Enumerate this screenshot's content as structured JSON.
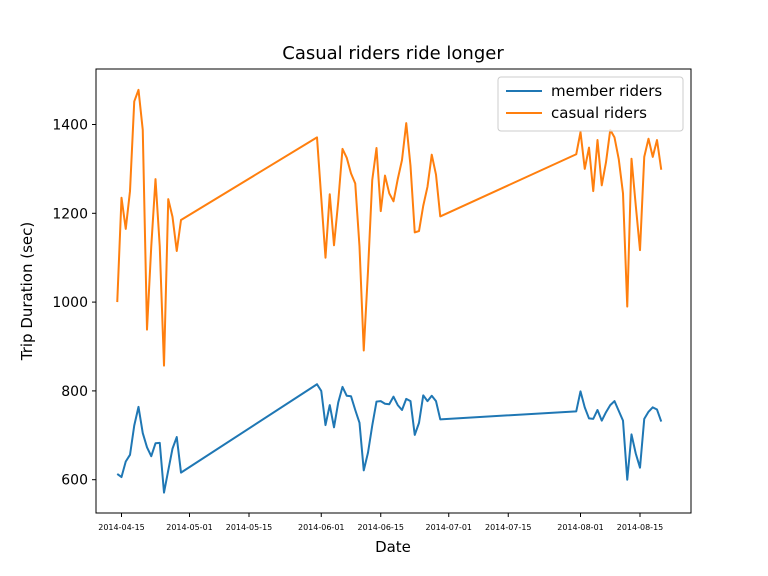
{
  "chart_data": {
    "type": "line",
    "title": "Casual riders ride longer",
    "xlabel": "Date",
    "ylabel": "Trip Duration (sec)",
    "xlim": [
      "2014-04-09",
      "2014-08-27"
    ],
    "ylim": [
      525,
      1525
    ],
    "x_ticks": [
      "2014-04-15",
      "2014-05-01",
      "2014-05-15",
      "2014-06-01",
      "2014-06-15",
      "2014-07-01",
      "2014-07-15",
      "2014-08-01",
      "2014-08-15"
    ],
    "y_ticks": [
      600,
      800,
      1000,
      1200,
      1400
    ],
    "grid": false,
    "legend_position": "top-right",
    "series": [
      {
        "name": "member riders",
        "color": "#1f77b4",
        "points": [
          [
            "2014-04-14",
            613
          ],
          [
            "2014-04-15",
            606
          ],
          [
            "2014-04-16",
            641
          ],
          [
            "2014-04-17",
            656
          ],
          [
            "2014-04-18",
            722
          ],
          [
            "2014-04-19",
            764
          ],
          [
            "2014-04-20",
            705
          ],
          [
            "2014-04-21",
            673
          ],
          [
            "2014-04-22",
            653
          ],
          [
            "2014-04-23",
            682
          ],
          [
            "2014-04-24",
            683
          ],
          [
            "2014-04-25",
            571
          ],
          [
            "2014-04-26",
            621
          ],
          [
            "2014-04-27",
            670
          ],
          [
            "2014-04-28",
            696
          ],
          [
            "2014-04-29",
            616
          ],
          [
            "2014-05-31",
            815
          ],
          [
            "2014-06-01",
            800
          ],
          [
            "2014-06-02",
            723
          ],
          [
            "2014-06-03",
            768
          ],
          [
            "2014-06-04",
            718
          ],
          [
            "2014-06-05",
            774
          ],
          [
            "2014-06-06",
            809
          ],
          [
            "2014-06-07",
            789
          ],
          [
            "2014-06-08",
            788
          ],
          [
            "2014-06-09",
            757
          ],
          [
            "2014-06-10",
            728
          ],
          [
            "2014-06-11",
            621
          ],
          [
            "2014-06-12",
            661
          ],
          [
            "2014-06-13",
            722
          ],
          [
            "2014-06-14",
            776
          ],
          [
            "2014-06-15",
            777
          ],
          [
            "2014-06-16",
            771
          ],
          [
            "2014-06-17",
            770
          ],
          [
            "2014-06-18",
            787
          ],
          [
            "2014-06-19",
            768
          ],
          [
            "2014-06-20",
            757
          ],
          [
            "2014-06-21",
            782
          ],
          [
            "2014-06-22",
            777
          ],
          [
            "2014-06-23",
            701
          ],
          [
            "2014-06-24",
            728
          ],
          [
            "2014-06-25",
            790
          ],
          [
            "2014-06-26",
            777
          ],
          [
            "2014-06-27",
            789
          ],
          [
            "2014-06-28",
            777
          ],
          [
            "2014-06-29",
            736
          ],
          [
            "2014-07-31",
            754
          ],
          [
            "2014-08-01",
            799
          ],
          [
            "2014-08-02",
            763
          ],
          [
            "2014-08-03",
            738
          ],
          [
            "2014-08-04",
            737
          ],
          [
            "2014-08-05",
            757
          ],
          [
            "2014-08-06",
            733
          ],
          [
            "2014-08-07",
            752
          ],
          [
            "2014-08-08",
            768
          ],
          [
            "2014-08-09",
            777
          ],
          [
            "2014-08-10",
            755
          ],
          [
            "2014-08-11",
            733
          ],
          [
            "2014-08-12",
            600
          ],
          [
            "2014-08-13",
            702
          ],
          [
            "2014-08-14",
            659
          ],
          [
            "2014-08-15",
            627
          ],
          [
            "2014-08-16",
            737
          ],
          [
            "2014-08-17",
            753
          ],
          [
            "2014-08-18",
            763
          ],
          [
            "2014-08-19",
            758
          ],
          [
            "2014-08-20",
            731
          ]
        ]
      },
      {
        "name": "casual riders",
        "color": "#ff7f0e",
        "points": [
          [
            "2014-04-14",
            1000
          ],
          [
            "2014-04-15",
            1235
          ],
          [
            "2014-04-16",
            1165
          ],
          [
            "2014-04-17",
            1250
          ],
          [
            "2014-04-18",
            1452
          ],
          [
            "2014-04-19",
            1478
          ],
          [
            "2014-04-20",
            1388
          ],
          [
            "2014-04-21",
            938
          ],
          [
            "2014-04-22",
            1125
          ],
          [
            "2014-04-23",
            1277
          ],
          [
            "2014-04-24",
            1125
          ],
          [
            "2014-04-25",
            857
          ],
          [
            "2014-04-26",
            1232
          ],
          [
            "2014-04-27",
            1192
          ],
          [
            "2014-04-28",
            1115
          ],
          [
            "2014-04-29",
            1185
          ],
          [
            "2014-05-31",
            1371
          ],
          [
            "2014-06-01",
            1235
          ],
          [
            "2014-06-02",
            1100
          ],
          [
            "2014-06-03",
            1243
          ],
          [
            "2014-06-04",
            1128
          ],
          [
            "2014-06-05",
            1227
          ],
          [
            "2014-06-06",
            1345
          ],
          [
            "2014-06-07",
            1325
          ],
          [
            "2014-06-08",
            1290
          ],
          [
            "2014-06-09",
            1267
          ],
          [
            "2014-06-10",
            1125
          ],
          [
            "2014-06-11",
            891
          ],
          [
            "2014-06-12",
            1070
          ],
          [
            "2014-06-13",
            1275
          ],
          [
            "2014-06-14",
            1347
          ],
          [
            "2014-06-15",
            1205
          ],
          [
            "2014-06-16",
            1285
          ],
          [
            "2014-06-17",
            1245
          ],
          [
            "2014-06-18",
            1227
          ],
          [
            "2014-06-19",
            1277
          ],
          [
            "2014-06-20",
            1320
          ],
          [
            "2014-06-21",
            1403
          ],
          [
            "2014-06-22",
            1307
          ],
          [
            "2014-06-23",
            1157
          ],
          [
            "2014-06-24",
            1160
          ],
          [
            "2014-06-25",
            1217
          ],
          [
            "2014-06-26",
            1260
          ],
          [
            "2014-06-27",
            1332
          ],
          [
            "2014-06-28",
            1287
          ],
          [
            "2014-06-29",
            1193
          ],
          [
            "2014-07-31",
            1333
          ],
          [
            "2014-08-01",
            1383
          ],
          [
            "2014-08-02",
            1300
          ],
          [
            "2014-08-03",
            1348
          ],
          [
            "2014-08-04",
            1250
          ],
          [
            "2014-08-05",
            1365
          ],
          [
            "2014-08-06",
            1263
          ],
          [
            "2014-08-07",
            1315
          ],
          [
            "2014-08-08",
            1388
          ],
          [
            "2014-08-09",
            1371
          ],
          [
            "2014-08-10",
            1322
          ],
          [
            "2014-08-11",
            1245
          ],
          [
            "2014-08-12",
            990
          ],
          [
            "2014-08-13",
            1323
          ],
          [
            "2014-08-14",
            1218
          ],
          [
            "2014-08-15",
            1117
          ],
          [
            "2014-08-16",
            1327
          ],
          [
            "2014-08-17",
            1368
          ],
          [
            "2014-08-18",
            1327
          ],
          [
            "2014-08-19",
            1365
          ],
          [
            "2014-08-20",
            1298
          ]
        ]
      }
    ]
  }
}
